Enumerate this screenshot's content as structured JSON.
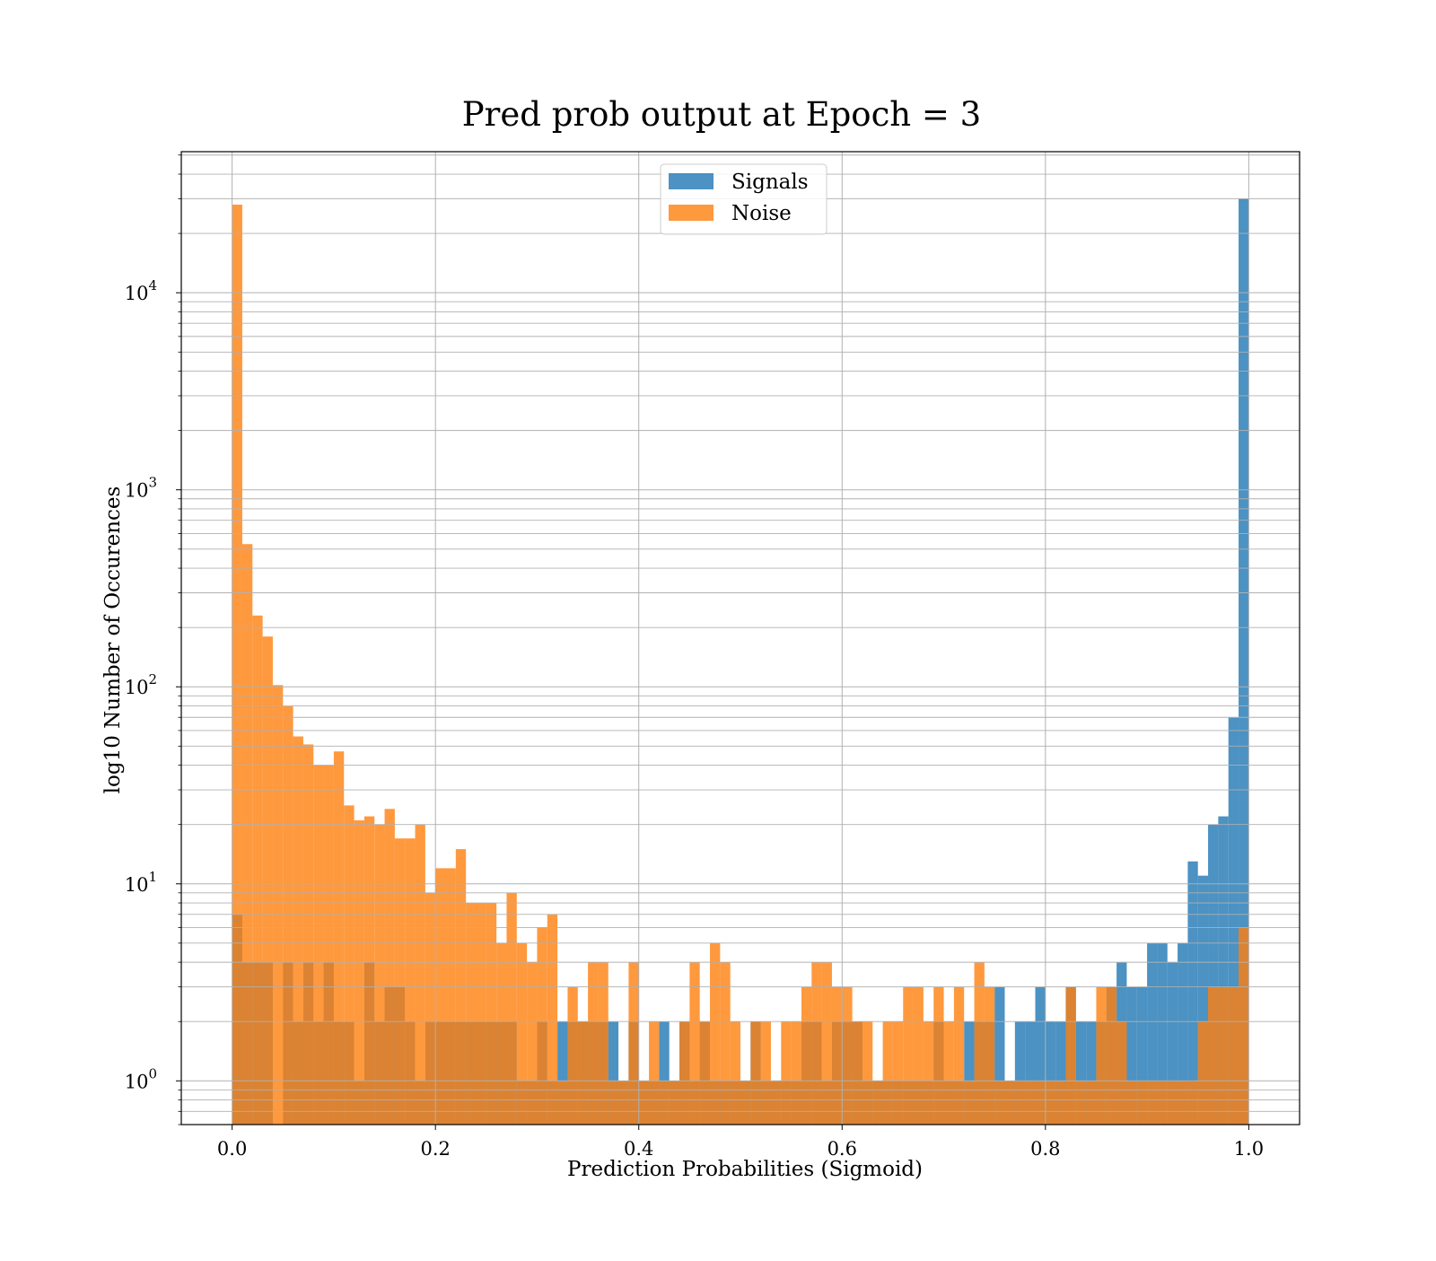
{
  "chart_data": {
    "type": "bar",
    "title": "Pred prob output at Epoch = 3",
    "xlabel": "Prediction Probabilities (Sigmoid)",
    "ylabel": "log10 Number of Occurences",
    "y_scale": "log",
    "xlim": [
      -0.05,
      1.05
    ],
    "ylim": [
      0.6,
      52000
    ],
    "grid": true,
    "legend_position": "upper center",
    "x_ticks": [
      {
        "value": 0.0,
        "label": "0.0"
      },
      {
        "value": 0.2,
        "label": "0.2"
      },
      {
        "value": 0.4,
        "label": "0.4"
      },
      {
        "value": 0.6,
        "label": "0.6"
      },
      {
        "value": 0.8,
        "label": "0.8"
      },
      {
        "value": 1.0,
        "label": "1.0"
      }
    ],
    "y_ticks": [
      {
        "value": 1,
        "base": "10",
        "exp": "0"
      },
      {
        "value": 10,
        "base": "10",
        "exp": "1"
      },
      {
        "value": 100,
        "base": "10",
        "exp": "2"
      },
      {
        "value": 1000,
        "base": "10",
        "exp": "3"
      },
      {
        "value": 10000,
        "base": "10",
        "exp": "4"
      }
    ],
    "bin_range": [
      0.0,
      1.0
    ],
    "bins": 100,
    "series": [
      {
        "name": "Signals",
        "color": "#1f77b4",
        "opacity": 0.8,
        "counts": [
          7,
          4,
          4,
          4,
          0,
          4,
          2,
          4,
          2,
          4,
          2,
          2,
          1,
          4,
          2,
          3,
          3,
          2,
          1,
          2,
          2,
          2,
          2,
          2,
          2,
          2,
          2,
          2,
          1,
          1,
          2,
          1,
          2,
          2,
          2,
          2,
          2,
          2,
          1,
          2,
          1,
          1,
          2,
          1,
          2,
          1,
          2,
          1,
          1,
          1,
          1,
          2,
          1,
          1,
          1,
          1,
          2,
          2,
          1,
          2,
          2,
          2,
          1,
          1,
          1,
          1,
          1,
          1,
          1,
          2,
          1,
          1,
          2,
          2,
          2,
          3,
          1,
          2,
          2,
          3,
          2,
          2,
          3,
          2,
          2,
          2,
          3,
          4,
          3,
          3,
          5,
          5,
          4,
          5,
          13,
          11,
          20,
          22,
          70,
          30000
        ]
      },
      {
        "name": "Noise",
        "color": "#ff7f0e",
        "opacity": 0.8,
        "counts": [
          28000,
          530,
          230,
          180,
          102,
          80,
          56,
          51,
          40,
          40,
          47,
          25,
          21,
          22,
          20,
          24,
          17,
          17,
          20,
          9,
          12,
          12,
          15,
          8,
          8,
          8,
          5,
          9,
          5,
          4,
          6,
          7,
          1,
          3,
          2,
          4,
          4,
          1,
          1,
          4,
          1,
          2,
          1,
          1,
          2,
          4,
          2,
          5,
          4,
          2,
          1,
          2,
          2,
          1,
          2,
          2,
          3,
          4,
          4,
          3,
          3,
          2,
          2,
          1,
          2,
          2,
          3,
          3,
          2,
          3,
          2,
          3,
          1,
          4,
          3,
          1,
          1,
          1,
          1,
          1,
          1,
          1,
          3,
          1,
          1,
          3,
          3,
          2,
          1,
          1,
          1,
          1,
          1,
          1,
          1,
          2,
          3,
          3,
          3,
          6
        ]
      }
    ]
  }
}
